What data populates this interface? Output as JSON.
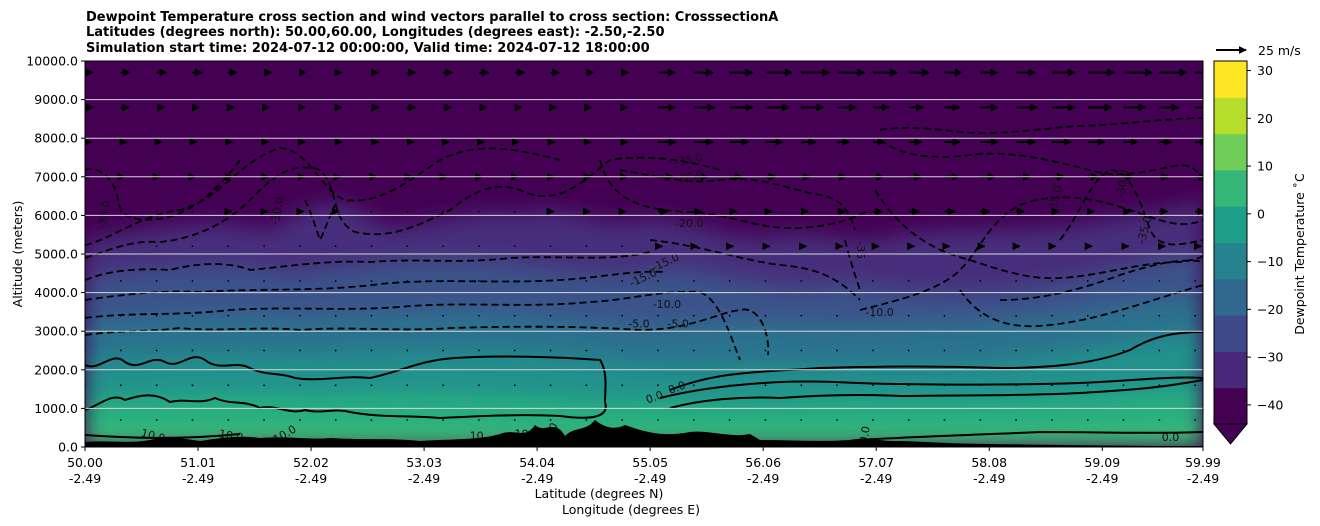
{
  "chart_data": {
    "type": "contour",
    "title_lines": [
      "Dewpoint Temperature cross section and wind vectors parallel to cross section: CrosssectionA",
      "Latitudes (degrees north): 50.00,60.00, Longitudes (degrees east): -2.50,-2.50",
      "Simulation start time: 2024-07-12 00:00:00, Valid time: 2024-07-12 18:00:00"
    ],
    "ylabel": "Altitude (meters)",
    "xlabel_lat": "Latitude (degrees N)",
    "xlabel_lon": "Longitude (degrees E)",
    "x_ticks": [
      {
        "lat": "50.00",
        "lon": "-2.49"
      },
      {
        "lat": "51.01",
        "lon": "-2.49"
      },
      {
        "lat": "52.02",
        "lon": "-2.49"
      },
      {
        "lat": "53.03",
        "lon": "-2.49"
      },
      {
        "lat": "54.04",
        "lon": "-2.49"
      },
      {
        "lat": "55.05",
        "lon": "-2.49"
      },
      {
        "lat": "56.06",
        "lon": "-2.49"
      },
      {
        "lat": "57.07",
        "lon": "-2.49"
      },
      {
        "lat": "58.08",
        "lon": "-2.49"
      },
      {
        "lat": "59.09",
        "lon": "-2.49"
      },
      {
        "lat": "59.99",
        "lon": "-2.49"
      }
    ],
    "xlim": [
      50.0,
      59.99
    ],
    "y_ticks": [
      "0.0",
      "1000.0",
      "2000.0",
      "3000.0",
      "4000.0",
      "5000.0",
      "6000.0",
      "7000.0",
      "8000.0",
      "9000.0",
      "10000.0"
    ],
    "ylim": [
      0,
      10000
    ],
    "grid_horizontal": true,
    "colorbar": {
      "label": "Dewpoint Temperature ˚C",
      "range": [
        -44,
        32
      ],
      "ticks": [
        "30",
        "20",
        "10",
        "0",
        "−10",
        "−20",
        "−30",
        "−40"
      ],
      "tick_values": [
        30,
        20,
        10,
        0,
        -10,
        -20,
        -30,
        -40
      ],
      "colormap": [
        "#440154",
        "#482878",
        "#3e4989",
        "#31688e",
        "#26828e",
        "#1f9e89",
        "#35b779",
        "#6ece58",
        "#b5de2b",
        "#fde725"
      ],
      "extend": "min"
    },
    "quiver_key": {
      "label": "25 m/s",
      "speed": 25
    },
    "contour_labels": [
      {
        "text": "-35.0",
        "lat": 50.2,
        "alt": 6000,
        "rot": -80
      },
      {
        "text": "-30.0",
        "lat": 51.75,
        "alt": 6100,
        "rot": -80
      },
      {
        "text": "-35.0",
        "lat": 55.4,
        "alt": 7350,
        "rot": -10
      },
      {
        "text": "-30.0",
        "lat": 55.4,
        "alt": 6900,
        "rot": -10
      },
      {
        "text": "-20.0",
        "lat": 55.4,
        "alt": 5700,
        "rot": 0
      },
      {
        "text": "-15.0",
        "lat": 55.0,
        "alt": 4300,
        "rot": -25
      },
      {
        "text": "-15.0",
        "lat": 55.2,
        "alt": 4700,
        "rot": -25
      },
      {
        "text": "-10.0",
        "lat": 55.2,
        "alt": 3600,
        "rot": 0
      },
      {
        "text": "-5.0",
        "lat": 54.95,
        "alt": 3100,
        "rot": 0
      },
      {
        "text": "-5.0",
        "lat": 55.3,
        "alt": 3100,
        "rot": 0
      },
      {
        "text": "-10.0",
        "lat": 57.1,
        "alt": 3400,
        "rot": 0
      },
      {
        "text": "-35",
        "lat": 56.9,
        "alt": 5100,
        "rot": 90
      },
      {
        "text": "-35.0",
        "lat": 58.7,
        "alt": 6400,
        "rot": -80
      },
      {
        "text": "-30.0",
        "lat": 59.3,
        "alt": 6800,
        "rot": -80
      },
      {
        "text": "-35.0",
        "lat": 59.5,
        "alt": 5600,
        "rot": -75
      },
      {
        "text": "0.0",
        "lat": 55.1,
        "alt": 1200,
        "rot": -20
      },
      {
        "text": "0.0",
        "lat": 55.3,
        "alt": 1450,
        "rot": -20
      },
      {
        "text": "10.0",
        "lat": 50.6,
        "alt": 200,
        "rot": 15
      },
      {
        "text": "10.0",
        "lat": 51.3,
        "alt": 200,
        "rot": 10
      },
      {
        "text": "10.0",
        "lat": 51.8,
        "alt": 250,
        "rot": -30
      },
      {
        "text": "10",
        "lat": 53.5,
        "alt": 200,
        "rot": 0
      },
      {
        "text": "10",
        "lat": 53.9,
        "alt": 250,
        "rot": 0
      },
      {
        "text": "10",
        "lat": 54.2,
        "alt": 400,
        "rot": -60
      },
      {
        "text": "0.0",
        "lat": 57.0,
        "alt": 300,
        "rot": -80
      },
      {
        "text": "0.0",
        "lat": 59.7,
        "alt": 150,
        "rot": 0
      }
    ]
  }
}
